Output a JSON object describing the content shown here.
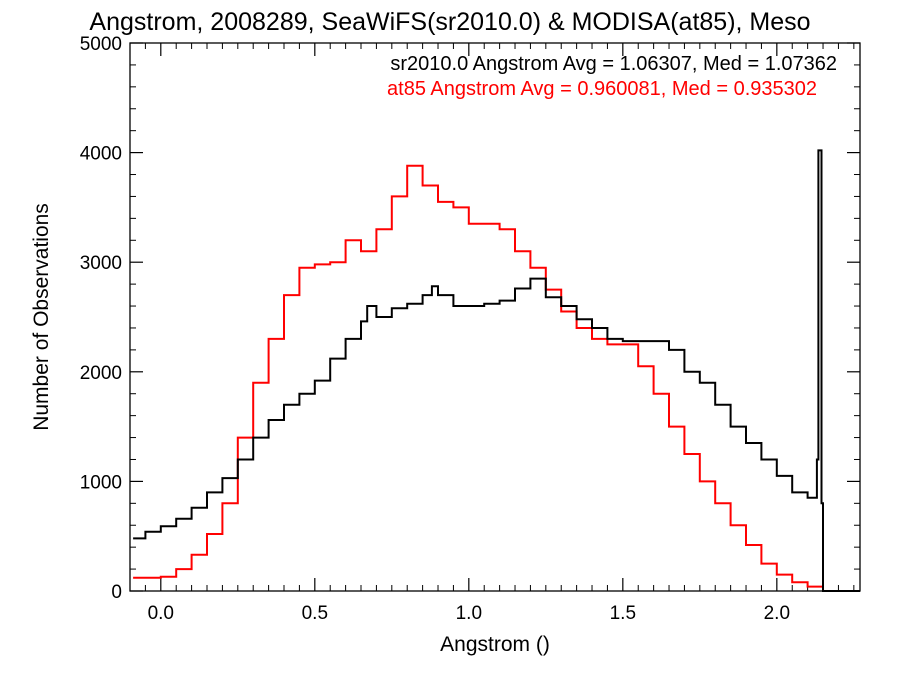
{
  "chart_data": {
    "type": "line",
    "title": "Angstrom, 2008289, SeaWiFS(sr2010.0) & MODISA(at85), Meso",
    "xlabel": "Angstrom ()",
    "ylabel": "Number of Observations",
    "xlim": [
      -0.1,
      2.27
    ],
    "ylim": [
      0,
      5000
    ],
    "grid": false,
    "xticks": [
      0.0,
      0.5,
      1.0,
      1.5,
      2.0
    ],
    "xtick_labels": [
      "0.0",
      "0.5",
      "1.0",
      "1.5",
      "2.0"
    ],
    "yticks": [
      0,
      1000,
      2000,
      3000,
      4000,
      5000
    ],
    "ytick_labels": [
      "0",
      "1000",
      "2000",
      "3000",
      "4000",
      "5000"
    ],
    "annotations": [
      {
        "text": "sr2010.0 Angstrom Avg = 1.06307, Med = 1.07362",
        "color": "#000000"
      },
      {
        "text": "at85 Angstrom Avg = 0.960081, Med = 0.935302",
        "color": "#ff0000"
      }
    ],
    "series": [
      {
        "color": "#000000",
        "x": [
          -0.09,
          -0.05,
          0.0,
          0.05,
          0.1,
          0.15,
          0.2,
          0.25,
          0.3,
          0.35,
          0.4,
          0.45,
          0.5,
          0.55,
          0.6,
          0.65,
          0.67,
          0.7,
          0.75,
          0.8,
          0.85,
          0.88,
          0.9,
          0.95,
          1.0,
          1.05,
          1.1,
          1.15,
          1.2,
          1.25,
          1.3,
          1.35,
          1.4,
          1.45,
          1.5,
          1.55,
          1.6,
          1.65,
          1.7,
          1.75,
          1.8,
          1.85,
          1.9,
          1.95,
          2.0,
          2.05,
          2.1,
          2.13,
          2.135,
          2.14,
          2.145,
          2.15,
          2.27
        ],
        "y": [
          480,
          540,
          590,
          660,
          760,
          900,
          1030,
          1200,
          1400,
          1560,
          1700,
          1800,
          1920,
          2120,
          2300,
          2460,
          2600,
          2500,
          2580,
          2620,
          2700,
          2780,
          2700,
          2600,
          2600,
          2620,
          2650,
          2760,
          2850,
          2680,
          2600,
          2480,
          2400,
          2300,
          2280,
          2280,
          2280,
          2200,
          2000,
          1900,
          1700,
          1500,
          1350,
          1200,
          1050,
          900,
          850,
          1200,
          4020,
          4020,
          800,
          0,
          0
        ]
      },
      {
        "color": "#ff0000",
        "x": [
          -0.09,
          0.0,
          0.05,
          0.1,
          0.15,
          0.2,
          0.25,
          0.3,
          0.35,
          0.4,
          0.45,
          0.5,
          0.55,
          0.6,
          0.65,
          0.7,
          0.75,
          0.8,
          0.85,
          0.9,
          0.95,
          1.0,
          1.05,
          1.1,
          1.15,
          1.2,
          1.25,
          1.3,
          1.35,
          1.4,
          1.45,
          1.5,
          1.55,
          1.6,
          1.65,
          1.7,
          1.75,
          1.8,
          1.85,
          1.9,
          1.95,
          2.0,
          2.05,
          2.1,
          2.15,
          2.27
        ],
        "y": [
          120,
          130,
          200,
          330,
          520,
          800,
          1400,
          1900,
          2300,
          2700,
          2950,
          2980,
          3000,
          3200,
          3100,
          3300,
          3600,
          3880,
          3700,
          3550,
          3500,
          3350,
          3350,
          3300,
          3100,
          2950,
          2750,
          2550,
          2400,
          2300,
          2250,
          2250,
          2050,
          1800,
          1500,
          1250,
          1000,
          800,
          600,
          420,
          250,
          150,
          80,
          40,
          0,
          0
        ]
      }
    ]
  }
}
